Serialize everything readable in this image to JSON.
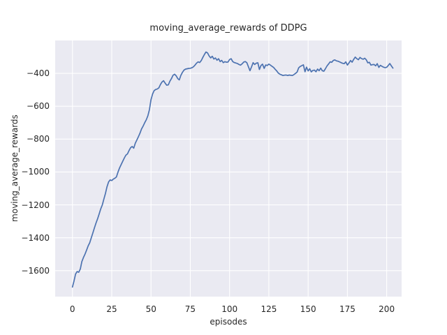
{
  "figure": {
    "background": "#ffffff"
  },
  "chart_data": {
    "type": "line",
    "title": "moving_average_rewards of DDPG",
    "xlabel": "episodes",
    "ylabel": "moving_average_rewards",
    "series": [
      {
        "name": "moving_average_rewards",
        "x_start": 0,
        "x_step": 1,
        "values": [
          -1700,
          -1663,
          -1621,
          -1605,
          -1610,
          -1590,
          -1545,
          -1520,
          -1500,
          -1475,
          -1450,
          -1430,
          -1400,
          -1370,
          -1340,
          -1310,
          -1285,
          -1255,
          -1225,
          -1200,
          -1165,
          -1130,
          -1090,
          -1060,
          -1048,
          -1052,
          -1043,
          -1038,
          -1030,
          -1000,
          -975,
          -955,
          -935,
          -915,
          -898,
          -890,
          -870,
          -852,
          -845,
          -855,
          -825,
          -805,
          -785,
          -763,
          -738,
          -720,
          -700,
          -682,
          -658,
          -620,
          -560,
          -525,
          -505,
          -498,
          -495,
          -488,
          -468,
          -452,
          -445,
          -460,
          -472,
          -470,
          -448,
          -432,
          -412,
          -405,
          -415,
          -432,
          -440,
          -412,
          -394,
          -380,
          -374,
          -372,
          -370,
          -369,
          -366,
          -360,
          -350,
          -338,
          -330,
          -334,
          -322,
          -303,
          -285,
          -270,
          -276,
          -294,
          -306,
          -296,
          -313,
          -306,
          -320,
          -311,
          -328,
          -321,
          -335,
          -329,
          -332,
          -331,
          -316,
          -311,
          -328,
          -334,
          -337,
          -340,
          -346,
          -350,
          -342,
          -331,
          -328,
          -335,
          -360,
          -384,
          -360,
          -335,
          -346,
          -338,
          -336,
          -376,
          -352,
          -344,
          -370,
          -349,
          -352,
          -344,
          -350,
          -357,
          -364,
          -375,
          -385,
          -398,
          -405,
          -409,
          -413,
          -411,
          -410,
          -413,
          -410,
          -412,
          -413,
          -407,
          -400,
          -392,
          -366,
          -358,
          -353,
          -348,
          -390,
          -362,
          -385,
          -372,
          -391,
          -382,
          -380,
          -390,
          -374,
          -384,
          -368,
          -384,
          -387,
          -372,
          -355,
          -343,
          -330,
          -333,
          -322,
          -318,
          -324,
          -326,
          -330,
          -335,
          -339,
          -341,
          -330,
          -350,
          -337,
          -322,
          -332,
          -315,
          -301,
          -311,
          -317,
          -303,
          -310,
          -314,
          -308,
          -317,
          -336,
          -333,
          -350,
          -347,
          -346,
          -354,
          -341,
          -364,
          -351,
          -357,
          -362,
          -365,
          -363,
          -352,
          -340,
          -355,
          -368
        ]
      }
    ],
    "xlim": [
      -11,
      209.5
    ],
    "ylim": [
      -1758,
      -200
    ],
    "xticks": {
      "values": [
        0,
        25,
        50,
        75,
        100,
        125,
        150,
        175,
        200
      ],
      "labels": [
        "0",
        "25",
        "50",
        "75",
        "100",
        "125",
        "150",
        "175",
        "200"
      ]
    },
    "yticks": {
      "values": [
        -400,
        -600,
        -800,
        -1000,
        -1200,
        -1400,
        -1600
      ],
      "labels": [
        "−400",
        "−600",
        "−800",
        "−1000",
        "−1200",
        "−1400",
        "−1600"
      ]
    },
    "grid": true,
    "legend_position": "none",
    "colors": {
      "line": "#4c72b0",
      "plot_background": "#eaeaf2",
      "gridline": "#ffffff",
      "text": "#262626"
    }
  }
}
